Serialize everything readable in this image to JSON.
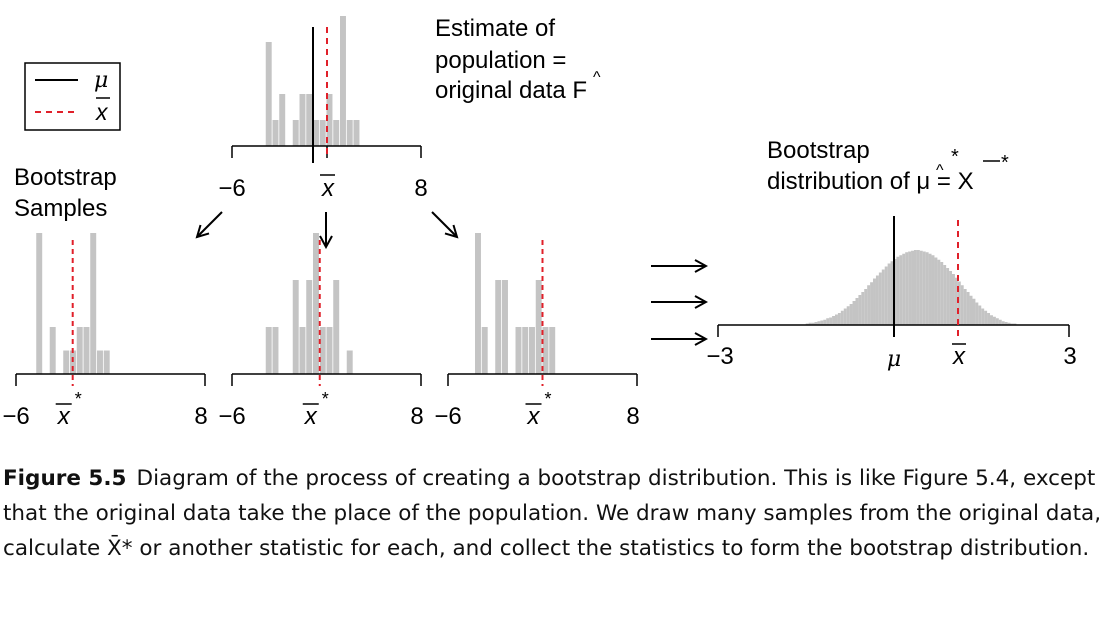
{
  "legend": {
    "mu_label": "μ",
    "xbar_label": "x",
    "mu_color": "#000000",
    "xbar_color": "#e0202a"
  },
  "colors": {
    "bar": "#c4c4c4",
    "axis": "#000000",
    "mean_line": "#e0202a"
  },
  "labels": {
    "population_title": [
      "Estimate of",
      "population =",
      "original data F"
    ],
    "bootstrap_samples": [
      "Bootstrap",
      "Samples"
    ],
    "bootstrap_dist": [
      "Bootstrap",
      "distribution of μ = X"
    ]
  },
  "original_data": {
    "axis_min": -6,
    "axis_max": 8,
    "ticks": [
      "−6",
      "8"
    ],
    "mean_label": "x",
    "mu": -0.5,
    "xbar": 0.3,
    "bin_width": 0.5,
    "bins": [
      {
        "x0": -3.5,
        "height": 4
      },
      {
        "x0": -3.0,
        "height": 1
      },
      {
        "x0": -2.5,
        "height": 2
      },
      {
        "x0": -1.5,
        "height": 1
      },
      {
        "x0": -1.0,
        "height": 2
      },
      {
        "x0": -0.5,
        "height": 2
      },
      {
        "x0": 0.0,
        "height": 1
      },
      {
        "x0": 0.5,
        "height": 1
      },
      {
        "x0": 1.0,
        "height": 2
      },
      {
        "x0": 1.5,
        "height": 1
      },
      {
        "x0": 2.0,
        "height": 5
      },
      {
        "x0": 2.5,
        "height": 1
      },
      {
        "x0": 3.0,
        "height": 1
      }
    ]
  },
  "bootstrap_samples": [
    {
      "axis_min": -6,
      "axis_max": 8,
      "ticks": [
        "−6",
        "8"
      ],
      "mean_label": "x",
      "mean_star": "*",
      "xbar": -1.8,
      "bin_width": 0.5,
      "bins": [
        {
          "x0": -4.5,
          "height": 3
        },
        {
          "x0": -3.5,
          "height": 1
        },
        {
          "x0": -2.5,
          "height": 0.5
        },
        {
          "x0": -2.0,
          "height": 0.5
        },
        {
          "x0": -1.5,
          "height": 1
        },
        {
          "x0": -1.0,
          "height": 1
        },
        {
          "x0": -0.5,
          "height": 3
        },
        {
          "x0": 0.0,
          "height": 0.5
        },
        {
          "x0": 0.5,
          "height": 0.5
        }
      ]
    },
    {
      "axis_min": -6,
      "axis_max": 8,
      "ticks": [
        "−6",
        "8"
      ],
      "mean_label": "x",
      "mean_star": "*",
      "xbar": 0.5,
      "bin_width": 0.5,
      "bins": [
        {
          "x0": -3.5,
          "height": 1
        },
        {
          "x0": -3.0,
          "height": 1
        },
        {
          "x0": -1.5,
          "height": 2
        },
        {
          "x0": -1.0,
          "height": 1
        },
        {
          "x0": -0.5,
          "height": 2
        },
        {
          "x0": 0.0,
          "height": 3
        },
        {
          "x0": 0.5,
          "height": 1
        },
        {
          "x0": 1.0,
          "height": 1
        },
        {
          "x0": 1.5,
          "height": 2
        },
        {
          "x0": 2.5,
          "height": 0.5
        }
      ]
    },
    {
      "axis_min": -6,
      "axis_max": 8,
      "ticks": [
        "−6",
        "8"
      ],
      "mean_label": "x",
      "mean_star": "*",
      "xbar": 1.0,
      "bin_width": 0.5,
      "bins": [
        {
          "x0": -4.0,
          "height": 3
        },
        {
          "x0": -3.5,
          "height": 1
        },
        {
          "x0": -2.5,
          "height": 2
        },
        {
          "x0": -2.0,
          "height": 2
        },
        {
          "x0": -1.0,
          "height": 1
        },
        {
          "x0": -0.5,
          "height": 1
        },
        {
          "x0": 0.0,
          "height": 1
        },
        {
          "x0": 0.5,
          "height": 2
        },
        {
          "x0": 1.0,
          "height": 1
        },
        {
          "x0": 1.5,
          "height": 1
        }
      ]
    }
  ],
  "bootstrap_distribution": {
    "axis_min": -3,
    "axis_max": 3,
    "ticks": [
      "−3",
      "3"
    ],
    "mu_label": "μ",
    "xbar_label": "x",
    "mu": -0.5,
    "xbar": 0.4,
    "bin_start": -1.5,
    "bin_width": 0.05,
    "heights": [
      0.02,
      0.03,
      0.03,
      0.04,
      0.05,
      0.06,
      0.07,
      0.09,
      0.1,
      0.12,
      0.14,
      0.16,
      0.19,
      0.22,
      0.25,
      0.28,
      0.32,
      0.36,
      0.4,
      0.44,
      0.48,
      0.53,
      0.57,
      0.62,
      0.66,
      0.7,
      0.74,
      0.78,
      0.82,
      0.85,
      0.88,
      0.91,
      0.93,
      0.95,
      0.97,
      0.98,
      0.99,
      1.0,
      1.0,
      0.99,
      0.98,
      0.97,
      0.95,
      0.93,
      0.9,
      0.87,
      0.84,
      0.8,
      0.76,
      0.72,
      0.68,
      0.63,
      0.58,
      0.53,
      0.48,
      0.44,
      0.39,
      0.35,
      0.3,
      0.26,
      0.22,
      0.19,
      0.16,
      0.13,
      0.11,
      0.09,
      0.07,
      0.05,
      0.04,
      0.03,
      0.02,
      0.02
    ]
  },
  "caption": {
    "figure_label": "Figure 5.5",
    "text": "Diagram of the process of creating a bootstrap distribution. This is like Figure 5.4, except that the original data take the place of the population. We draw many samples from the original data, calculate X̄* or another statistic for each, and collect the statistics to form the bootstrap distribution."
  }
}
